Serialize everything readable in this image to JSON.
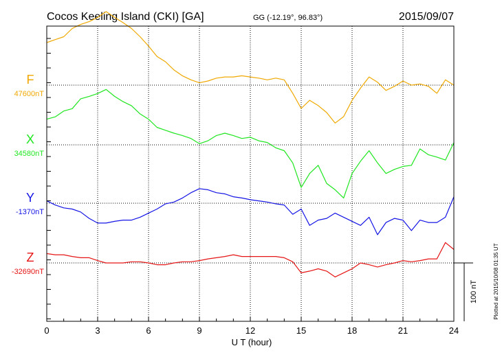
{
  "header": {
    "station": "Cocos Keeling Island (CKI)  [GA]",
    "coords": "GG (-12.19°,  96.83°)",
    "date": "2015/09/07"
  },
  "plotted_note": "Plotted at 2015/10/08 01:35 UT",
  "chart_data": {
    "type": "line",
    "xlabel": "U T (hour)",
    "xlim": [
      0,
      24
    ],
    "x_ticks": [
      0,
      3,
      6,
      9,
      12,
      15,
      18,
      21,
      24
    ],
    "scale_bar": {
      "label": "100 nT",
      "nT": 100
    },
    "series": [
      {
        "name": "F",
        "baseline_label": "47600nT",
        "baseline_nT": 47600,
        "color": "#f0a800",
        "x": [
          0,
          0.5,
          1,
          1.5,
          2,
          2.5,
          3,
          3.5,
          4,
          4.5,
          5,
          5.5,
          6,
          6.5,
          7,
          7.5,
          8,
          8.5,
          9,
          9.5,
          10,
          10.5,
          11,
          11.5,
          12,
          12.5,
          13,
          13.5,
          14,
          14.5,
          15,
          15.5,
          16,
          16.5,
          17,
          17.5,
          18,
          18.5,
          19,
          19.5,
          20,
          20.5,
          21,
          21.5,
          22,
          22.5,
          23,
          23.5,
          24
        ],
        "y": [
          47673,
          47678,
          47683,
          47697,
          47704,
          47709,
          47716,
          47726,
          47716,
          47707,
          47697,
          47683,
          47667,
          47649,
          47640,
          47626,
          47616,
          47609,
          47604,
          47607,
          47612,
          47614,
          47614,
          47616,
          47614,
          47612,
          47609,
          47612,
          47609,
          47586,
          47560,
          47574,
          47565,
          47553,
          47535,
          47546,
          47574,
          47595,
          47614,
          47605,
          47591,
          47598,
          47607,
          47600,
          47602,
          47598,
          47586,
          47609,
          47600
        ]
      },
      {
        "name": "X",
        "baseline_label": "34580nT",
        "baseline_nT": 34580,
        "color": "#1ee61e",
        "x": [
          0,
          0.5,
          1,
          1.5,
          2,
          2.5,
          3,
          3.5,
          4,
          4.5,
          5,
          5.5,
          6,
          6.5,
          7,
          7.5,
          8,
          8.5,
          9,
          9.5,
          10,
          10.5,
          11,
          11.5,
          12,
          12.5,
          13,
          13.5,
          14,
          14.5,
          15,
          15.5,
          16,
          16.5,
          17,
          17.5,
          18,
          18.5,
          19,
          19.5,
          20,
          20.5,
          21,
          21.5,
          22,
          22.5,
          23,
          23.5,
          24
        ],
        "y": [
          34624,
          34628,
          34638,
          34642,
          34659,
          34663,
          34668,
          34675,
          34663,
          34654,
          34647,
          34633,
          34624,
          34610,
          34605,
          34600,
          34596,
          34591,
          34582,
          34587,
          34596,
          34600,
          34596,
          34591,
          34593,
          34587,
          34584,
          34575,
          34570,
          34549,
          34507,
          34531,
          34545,
          34514,
          34503,
          34489,
          34531,
          34552,
          34570,
          34549,
          34531,
          34538,
          34543,
          34545,
          34573,
          34563,
          34559,
          34554,
          34584
        ]
      },
      {
        "name": "Y",
        "baseline_label": "-1370nT",
        "baseline_nT": -1370,
        "color": "#1414e6",
        "x": [
          0,
          0.5,
          1,
          1.5,
          2,
          2.5,
          3,
          3.5,
          4,
          4.5,
          5,
          5.5,
          6,
          6.5,
          7,
          7.5,
          8,
          8.5,
          9,
          9.5,
          10,
          10.5,
          11,
          11.5,
          12,
          12.5,
          13,
          13.5,
          14,
          14.5,
          15,
          15.5,
          16,
          16.5,
          17,
          17.5,
          18,
          18.5,
          19,
          19.5,
          20,
          20.5,
          21,
          21.5,
          22,
          22.5,
          23,
          23.5,
          24
        ],
        "y": [
          -1366,
          -1373,
          -1378,
          -1380,
          -1385,
          -1396,
          -1404,
          -1404,
          -1401,
          -1399,
          -1399,
          -1394,
          -1387,
          -1380,
          -1371,
          -1368,
          -1361,
          -1352,
          -1345,
          -1347,
          -1352,
          -1354,
          -1359,
          -1361,
          -1364,
          -1366,
          -1368,
          -1371,
          -1373,
          -1389,
          -1380,
          -1408,
          -1399,
          -1396,
          -1387,
          -1394,
          -1401,
          -1408,
          -1394,
          -1424,
          -1403,
          -1396,
          -1399,
          -1417,
          -1399,
          -1403,
          -1403,
          -1394,
          -1359
        ]
      },
      {
        "name": "Z",
        "baseline_label": "-32690nT",
        "baseline_nT": -32690,
        "color": "#e61414",
        "x": [
          0,
          0.5,
          1,
          1.5,
          2,
          2.5,
          3,
          3.5,
          4,
          4.5,
          5,
          5.5,
          6,
          6.5,
          7,
          7.5,
          8,
          8.5,
          9,
          9.5,
          10,
          10.5,
          11,
          11.5,
          12,
          12.5,
          13,
          13.5,
          14,
          14.5,
          15,
          15.5,
          16,
          16.5,
          17,
          17.5,
          18,
          18.5,
          19,
          19.5,
          20,
          20.5,
          21,
          21.5,
          22,
          22.5,
          23,
          23.5,
          24
        ],
        "y": [
          -32674,
          -32676,
          -32676,
          -32679,
          -32681,
          -32681,
          -32686,
          -32690,
          -32690,
          -32690,
          -32688,
          -32688,
          -32690,
          -32693,
          -32693,
          -32690,
          -32688,
          -32688,
          -32686,
          -32683,
          -32681,
          -32679,
          -32676,
          -32679,
          -32679,
          -32679,
          -32679,
          -32679,
          -32681,
          -32688,
          -32707,
          -32704,
          -32700,
          -32704,
          -32714,
          -32707,
          -32700,
          -32690,
          -32693,
          -32697,
          -32693,
          -32690,
          -32686,
          -32688,
          -32686,
          -32683,
          -32683,
          -32655,
          -32667
        ]
      }
    ]
  }
}
